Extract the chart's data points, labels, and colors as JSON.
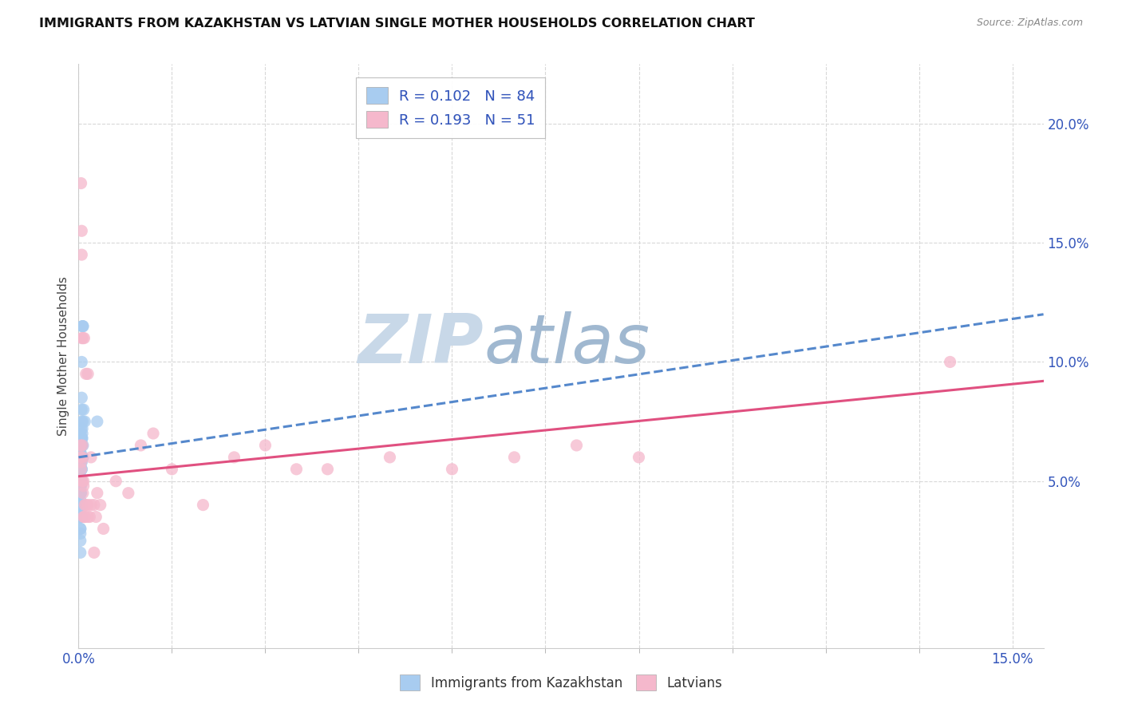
{
  "title": "IMMIGRANTS FROM KAZAKHSTAN VS LATVIAN SINGLE MOTHER HOUSEHOLDS CORRELATION CHART",
  "source": "Source: ZipAtlas.com",
  "ylabel": "Single Mother Households",
  "right_yticks": [
    "20.0%",
    "15.0%",
    "10.0%",
    "5.0%"
  ],
  "right_ytick_vals": [
    0.2,
    0.15,
    0.1,
    0.05
  ],
  "xlim": [
    0.0,
    0.155
  ],
  "ylim": [
    -0.02,
    0.225
  ],
  "legend_entries": [
    {
      "label": "R = 0.102   N = 84",
      "color": "#a8ccf0"
    },
    {
      "label": "R = 0.193   N = 51",
      "color": "#f5b8cc"
    }
  ],
  "blue_scatter_x": [
    0.0003,
    0.0005,
    0.0004,
    0.0006,
    0.0003,
    0.0005,
    0.0003,
    0.0004,
    0.0005,
    0.0003,
    0.0006,
    0.0004,
    0.0003,
    0.0004,
    0.0005,
    0.0006,
    0.0007,
    0.0003,
    0.0004,
    0.0003,
    0.0005,
    0.0003,
    0.0004,
    0.0005,
    0.0003,
    0.0004,
    0.0003,
    0.0004,
    0.0003,
    0.0003,
    0.0003,
    0.0005,
    0.0003,
    0.0005,
    0.0003,
    0.0003,
    0.0005,
    0.0003,
    0.0003,
    0.0007,
    0.0003,
    0.0005,
    0.0003,
    0.0005,
    0.0007,
    0.0005,
    0.0003,
    0.0007,
    0.0005,
    0.0003,
    0.0003,
    0.0003,
    0.0005,
    0.0005,
    0.0003,
    0.0005,
    0.0006,
    0.0003,
    0.0005,
    0.0005,
    0.0004,
    0.0003,
    0.0005,
    0.0007,
    0.0003,
    0.0004,
    0.0005,
    0.0003,
    0.0008,
    0.0007,
    0.0004,
    0.0003,
    0.0003,
    0.0003,
    0.001,
    0.0003,
    0.003,
    0.0003,
    0.0003,
    0.0003,
    0.0003,
    0.0003,
    0.0003,
    0.0003
  ],
  "blue_scatter_y": [
    0.065,
    0.075,
    0.055,
    0.07,
    0.06,
    0.05,
    0.045,
    0.065,
    0.06,
    0.062,
    0.068,
    0.072,
    0.055,
    0.05,
    0.08,
    0.115,
    0.115,
    0.06,
    0.058,
    0.055,
    0.1,
    0.07,
    0.06,
    0.085,
    0.06,
    0.065,
    0.055,
    0.05,
    0.045,
    0.04,
    0.035,
    0.055,
    0.03,
    0.04,
    0.025,
    0.02,
    0.05,
    0.045,
    0.05,
    0.06,
    0.03,
    0.035,
    0.028,
    0.04,
    0.06,
    0.06,
    0.055,
    0.065,
    0.06,
    0.05,
    0.055,
    0.06,
    0.055,
    0.058,
    0.06,
    0.065,
    0.072,
    0.062,
    0.06,
    0.068,
    0.045,
    0.04,
    0.06,
    0.115,
    0.035,
    0.048,
    0.068,
    0.055,
    0.08,
    0.075,
    0.05,
    0.05,
    0.04,
    0.055,
    0.075,
    0.06,
    0.075,
    0.052,
    0.06,
    0.048,
    0.058,
    0.045,
    0.042,
    0.055
  ],
  "pink_scatter_x": [
    0.0003,
    0.0005,
    0.0004,
    0.0005,
    0.0007,
    0.0005,
    0.0009,
    0.0006,
    0.0003,
    0.0006,
    0.0004,
    0.0004,
    0.0005,
    0.0007,
    0.0008,
    0.001,
    0.0012,
    0.0015,
    0.001,
    0.0008,
    0.0015,
    0.002,
    0.0025,
    0.006,
    0.008,
    0.01,
    0.012,
    0.015,
    0.02,
    0.035,
    0.05,
    0.06,
    0.03,
    0.04,
    0.07,
    0.08,
    0.09,
    0.025,
    0.0008,
    0.0006,
    0.001,
    0.0012,
    0.0015,
    0.0018,
    0.002,
    0.0025,
    0.0028,
    0.003,
    0.0035,
    0.004,
    0.14
  ],
  "pink_scatter_y": [
    0.065,
    0.155,
    0.175,
    0.145,
    0.11,
    0.11,
    0.11,
    0.065,
    0.06,
    0.06,
    0.058,
    0.055,
    0.05,
    0.045,
    0.048,
    0.035,
    0.095,
    0.095,
    0.04,
    0.035,
    0.04,
    0.06,
    0.04,
    0.05,
    0.045,
    0.065,
    0.07,
    0.055,
    0.04,
    0.055,
    0.06,
    0.055,
    0.065,
    0.055,
    0.06,
    0.065,
    0.06,
    0.06,
    0.05,
    0.05,
    0.035,
    0.04,
    0.035,
    0.035,
    0.04,
    0.02,
    0.035,
    0.045,
    0.04,
    0.03,
    0.1
  ],
  "blue_line_x": [
    0.0,
    0.155
  ],
  "blue_line_y": [
    0.06,
    0.12
  ],
  "pink_line_x": [
    0.0,
    0.155
  ],
  "pink_line_y": [
    0.052,
    0.092
  ],
  "blue_color": "#a8ccf0",
  "pink_color": "#f5b8cc",
  "blue_line_color": "#5588cc",
  "pink_line_color": "#e05080",
  "background_color": "#FFFFFF",
  "grid_color": "#d8d8d8",
  "watermark_zip": "ZIP",
  "watermark_atlas": "atlas",
  "watermark_color_zip": "#c8d8e8",
  "watermark_color_atlas": "#a0b8d0"
}
